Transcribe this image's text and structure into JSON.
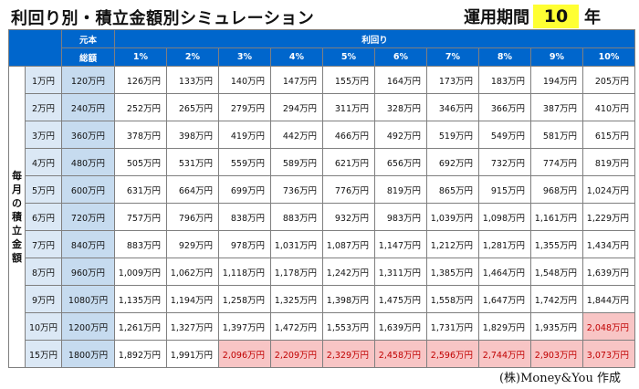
{
  "title": "利回り別・積立金額別シミュレーション",
  "period": {
    "label": "運用期間",
    "years": "10",
    "unit": "年"
  },
  "table": {
    "principal_header_line1": "元本",
    "principal_header_line2": "総額",
    "rate_group_label": "利回り",
    "side_label": "毎月の積立金額",
    "rates": [
      "1%",
      "2%",
      "3%",
      "4%",
      "5%",
      "6%",
      "7%",
      "8%",
      "9%",
      "10%"
    ],
    "rows": [
      {
        "monthly": "1万円",
        "principal": "120万円",
        "values": [
          "126万円",
          "133万円",
          "140万円",
          "147万円",
          "155万円",
          "164万円",
          "173万円",
          "183万円",
          "194万円",
          "205万円"
        ],
        "highlight_from": -1
      },
      {
        "monthly": "2万円",
        "principal": "240万円",
        "values": [
          "252万円",
          "265万円",
          "279万円",
          "294万円",
          "311万円",
          "328万円",
          "346万円",
          "366万円",
          "387万円",
          "410万円"
        ],
        "highlight_from": -1
      },
      {
        "monthly": "3万円",
        "principal": "360万円",
        "values": [
          "378万円",
          "398万円",
          "419万円",
          "442万円",
          "466万円",
          "492万円",
          "519万円",
          "549万円",
          "581万円",
          "615万円"
        ],
        "highlight_from": -1
      },
      {
        "monthly": "4万円",
        "principal": "480万円",
        "values": [
          "505万円",
          "531万円",
          "559万円",
          "589万円",
          "621万円",
          "656万円",
          "692万円",
          "732万円",
          "774万円",
          "819万円"
        ],
        "highlight_from": -1
      },
      {
        "monthly": "5万円",
        "principal": "600万円",
        "values": [
          "631万円",
          "664万円",
          "699万円",
          "736万円",
          "776万円",
          "819万円",
          "865万円",
          "915万円",
          "968万円",
          "1,024万円"
        ],
        "highlight_from": -1
      },
      {
        "monthly": "6万円",
        "principal": "720万円",
        "values": [
          "757万円",
          "796万円",
          "838万円",
          "883万円",
          "932万円",
          "983万円",
          "1,039万円",
          "1,098万円",
          "1,161万円",
          "1,229万円"
        ],
        "highlight_from": -1
      },
      {
        "monthly": "7万円",
        "principal": "840万円",
        "values": [
          "883万円",
          "929万円",
          "978万円",
          "1,031万円",
          "1,087万円",
          "1,147万円",
          "1,212万円",
          "1,281万円",
          "1,355万円",
          "1,434万円"
        ],
        "highlight_from": -1
      },
      {
        "monthly": "8万円",
        "principal": "960万円",
        "values": [
          "1,009万円",
          "1,062万円",
          "1,118万円",
          "1,178万円",
          "1,242万円",
          "1,311万円",
          "1,385万円",
          "1,464万円",
          "1,548万円",
          "1,639万円"
        ],
        "highlight_from": -1
      },
      {
        "monthly": "9万円",
        "principal": "1080万円",
        "values": [
          "1,135万円",
          "1,194万円",
          "1,258万円",
          "1,325万円",
          "1,398万円",
          "1,475万円",
          "1,558万円",
          "1,647万円",
          "1,742万円",
          "1,844万円"
        ],
        "highlight_from": -1
      },
      {
        "monthly": "10万円",
        "principal": "1200万円",
        "values": [
          "1,261万円",
          "1,327万円",
          "1,397万円",
          "1,472万円",
          "1,553万円",
          "1,639万円",
          "1,731万円",
          "1,829万円",
          "1,935万円",
          "2,048万円"
        ],
        "highlight_from": 9
      },
      {
        "monthly": "15万円",
        "principal": "1800万円",
        "values": [
          "1,892万円",
          "1,991万円",
          "2,096万円",
          "2,209万円",
          "2,329万円",
          "2,458万円",
          "2,596万円",
          "2,744万円",
          "2,903万円",
          "3,073万円"
        ],
        "highlight_from": 2
      }
    ]
  },
  "colors": {
    "header_blue": "#0066cc",
    "highlight_bg": "#f8c5c5",
    "highlight_text": "#c00000",
    "years_bg": "#ffff33"
  },
  "credit": "(株)Money&You 作成"
}
